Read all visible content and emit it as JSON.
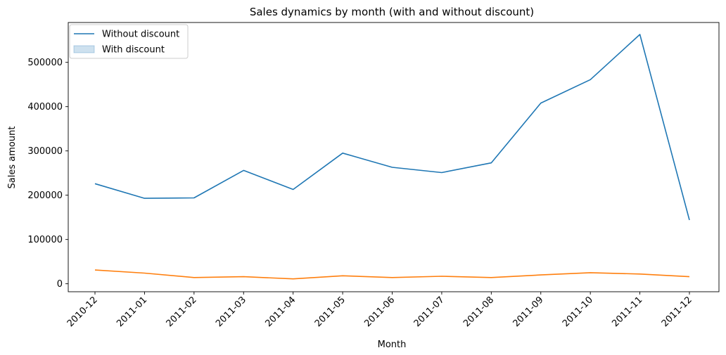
{
  "chart_data": {
    "type": "line",
    "title": "Sales dynamics by month (with and without discount)",
    "xlabel": "Month",
    "ylabel": "Sales amount",
    "categories": [
      "2010-12",
      "2011-01",
      "2011-02",
      "2011-03",
      "2011-04",
      "2011-05",
      "2011-06",
      "2011-07",
      "2011-08",
      "2011-09",
      "2011-10",
      "2011-11",
      "2011-12"
    ],
    "yticks": [
      0,
      100000,
      200000,
      300000,
      400000,
      500000
    ],
    "ylim": [
      -18000,
      590000
    ],
    "grid": false,
    "legend_position": "top-left",
    "series": [
      {
        "name": "Without discount",
        "legend_style": "line",
        "color": "#1f77b4",
        "values": [
          226000,
          193000,
          194000,
          256000,
          213000,
          295000,
          263000,
          251000,
          273000,
          408000,
          461000,
          563000,
          144000
        ]
      },
      {
        "name": "With discount",
        "legend_style": "patch",
        "color": "#ff7f0e",
        "legend_color": "#1f77b4",
        "values": [
          31000,
          24000,
          14000,
          16000,
          11000,
          18000,
          14000,
          17000,
          14000,
          20000,
          25000,
          22000,
          16000
        ]
      }
    ]
  }
}
